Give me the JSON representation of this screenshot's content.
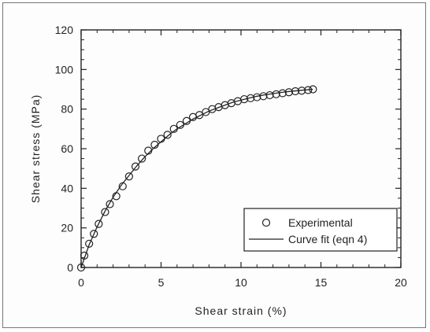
{
  "chart_data": {
    "type": "scatter",
    "title": "",
    "xlabel": "Shear strain (%)",
    "ylabel": "Shear stress (MPa)",
    "xlim": [
      0,
      20
    ],
    "ylim": [
      0,
      120
    ],
    "x_ticks": [
      "0",
      "5",
      "10",
      "15",
      "20"
    ],
    "y_ticks": [
      "0",
      "20",
      "40",
      "60",
      "80",
      "100",
      "120"
    ],
    "grid": false,
    "legend_position": "bottom-right",
    "series": [
      {
        "name": "Experimental",
        "kind": "markers",
        "marker": "open-circle",
        "x": [
          0.0,
          0.2,
          0.5,
          0.8,
          1.1,
          1.5,
          1.8,
          2.2,
          2.6,
          3.0,
          3.4,
          3.8,
          4.2,
          4.6,
          5.0,
          5.4,
          5.8,
          6.2,
          6.6,
          7.0,
          7.4,
          7.8,
          8.2,
          8.6,
          9.0,
          9.4,
          9.8,
          10.2,
          10.6,
          11.0,
          11.4,
          11.8,
          12.2,
          12.6,
          13.0,
          13.4,
          13.8,
          14.2,
          14.5
        ],
        "y": [
          0,
          6,
          12,
          17,
          22,
          28,
          32,
          36,
          41,
          46,
          51,
          55,
          59,
          62,
          65,
          67,
          70,
          72,
          74,
          76,
          77,
          78.5,
          80,
          81,
          82,
          83,
          84,
          85,
          85.5,
          86,
          86.5,
          87,
          87.5,
          88,
          88.5,
          89,
          89.3,
          89.6,
          90
        ]
      },
      {
        "name": "Curve fit (eqn 4)",
        "kind": "line",
        "x": [
          0.0,
          0.5,
          1.0,
          1.5,
          2.0,
          2.5,
          3.0,
          3.5,
          4.0,
          4.5,
          5.0,
          5.5,
          6.0,
          6.5,
          7.0,
          7.5,
          8.0,
          8.5,
          9.0,
          9.5,
          10.0,
          10.5,
          11.0,
          11.5,
          12.0,
          12.5,
          13.0,
          13.5,
          14.0,
          14.5
        ],
        "y": [
          0,
          11.5,
          20.5,
          28.5,
          35.5,
          41.5,
          46.5,
          51.5,
          56,
          60,
          63.5,
          67,
          70,
          72.5,
          75,
          77,
          79,
          80.5,
          82,
          83.5,
          84.5,
          85.5,
          86.5,
          87.2,
          87.8,
          88.4,
          88.9,
          89.3,
          89.7,
          90
        ]
      }
    ]
  },
  "colors": {
    "ink": "#222222",
    "frame": "#777777",
    "background": "#fdfdfd"
  }
}
